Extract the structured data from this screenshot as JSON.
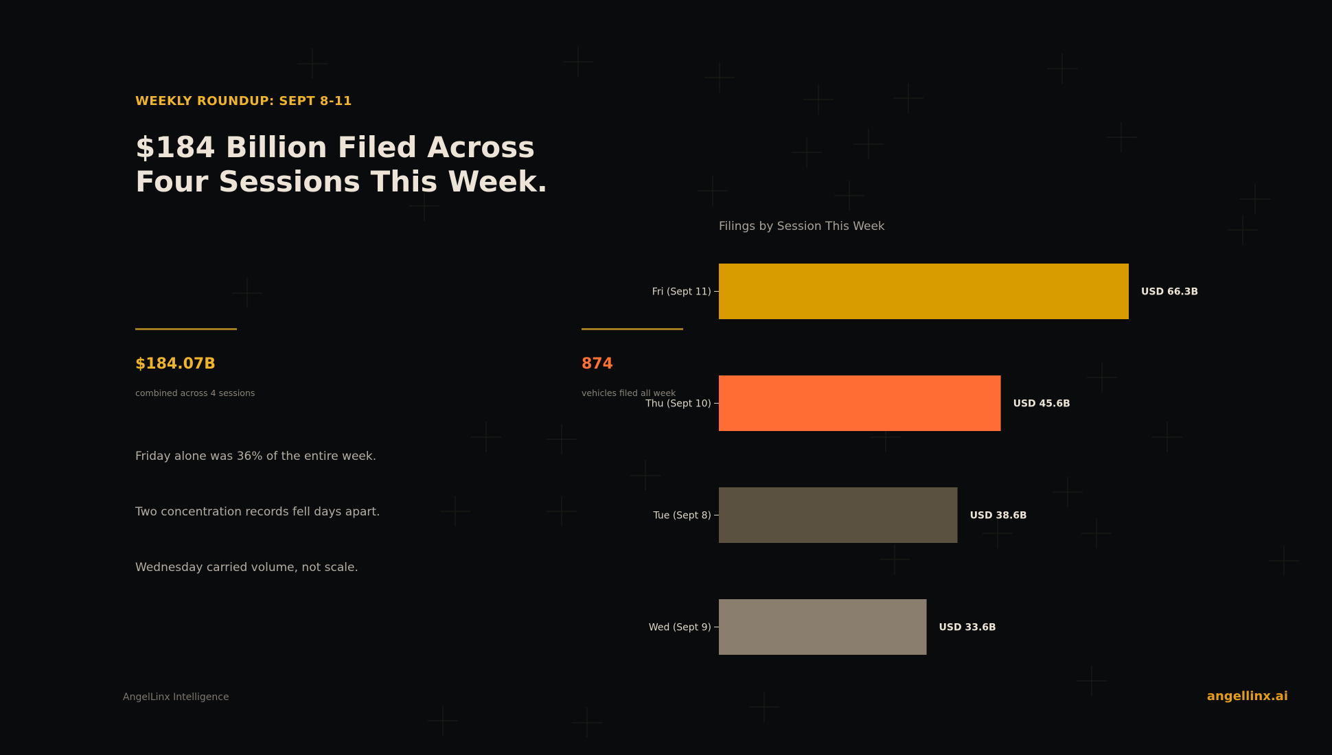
{
  "eyebrow": "WEEKLY ROUNDUP: SEPT 8-11",
  "headline": "$184 Billion Filed Across Four Sessions This Week.",
  "stats": [
    {
      "value": "$184.07B",
      "caption": "combined across 4 sessions",
      "color": "#f0b429"
    },
    {
      "value": "874",
      "caption": "vehicles filed all week",
      "color": "#ff7033"
    }
  ],
  "findings": [
    "Friday alone was 36% of the entire week.",
    "Two concentration records fell days apart.",
    "Wednesday carried volume, not scale."
  ],
  "footer": {
    "brand": "AngelLinx Intelligence",
    "site": "angellinx.ai"
  },
  "chart_data": {
    "type": "bar",
    "orientation": "horizontal",
    "title": "Filings by Session This Week",
    "categories": [
      "Fri (Sept 11)",
      "Thu (Sept 10)",
      "Tue (Sept 8)",
      "Wed (Sept 9)"
    ],
    "values": [
      66.3,
      45.6,
      38.6,
      33.6
    ],
    "value_labels": [
      "USD 66.3B",
      "USD 45.6B",
      "USD 38.6B",
      "USD 33.6B"
    ],
    "colors": [
      "#d89c00",
      "#ff6d35",
      "#5a5141",
      "#8a7f6f"
    ],
    "xlabel": "",
    "ylabel": "",
    "grid": false,
    "legend": "none"
  }
}
